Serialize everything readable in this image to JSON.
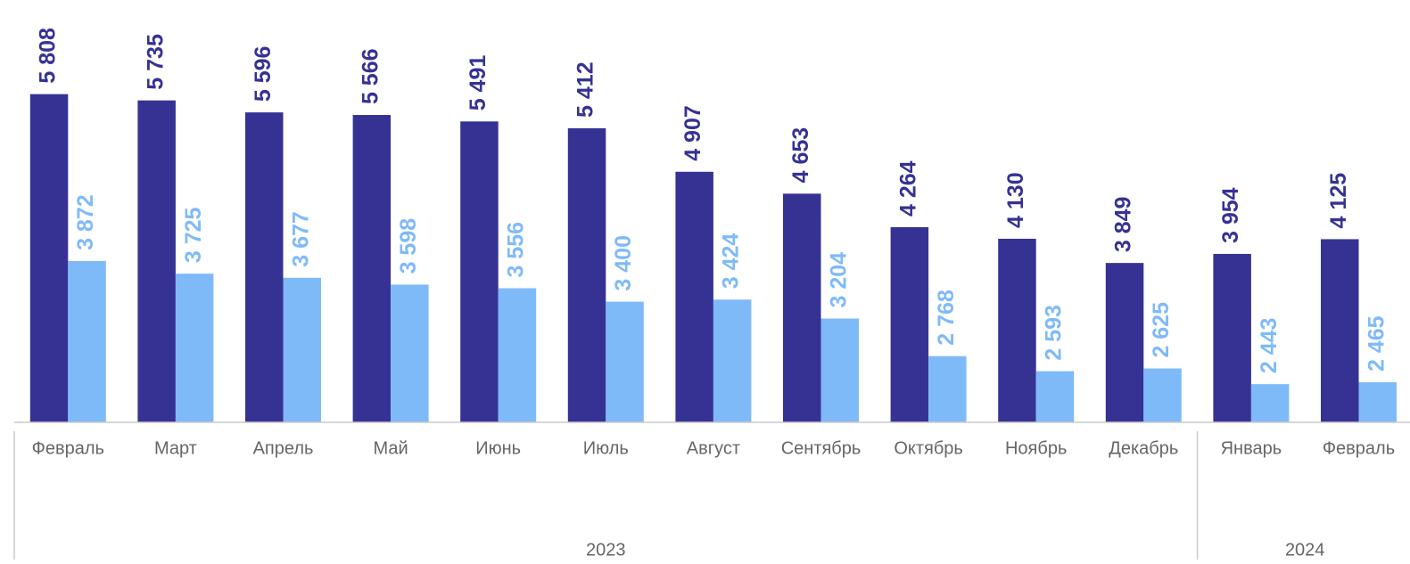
{
  "chart_data": {
    "type": "bar",
    "groups": [
      {
        "label": "2023",
        "categories": [
          "Февраль",
          "Март",
          "Апрель",
          "Май",
          "Июнь",
          "Июль",
          "Август",
          "Сентябрь",
          "Октябрь",
          "Ноябрь",
          "Декабрь"
        ]
      },
      {
        "label": "2024",
        "categories": [
          "Январь",
          "Февраль"
        ]
      }
    ],
    "series": [
      {
        "color": "#363294",
        "values": [
          5808,
          5735,
          5596,
          5566,
          5491,
          5412,
          4907,
          4653,
          4264,
          4130,
          3849,
          3954,
          4125
        ],
        "value_labels": [
          "5 808",
          "5 735",
          "5 596",
          "5 566",
          "5 491",
          "5 412",
          "4 907",
          "4 653",
          "4 264",
          "4 130",
          "3 849",
          "3 954",
          "4 125"
        ]
      },
      {
        "color": "#7fbaf8",
        "values": [
          3872,
          3725,
          3677,
          3598,
          3556,
          3400,
          3424,
          3204,
          2768,
          2593,
          2625,
          2443,
          2465
        ],
        "value_labels": [
          "3 872",
          "3 725",
          "3 677",
          "3 598",
          "3 556",
          "3 400",
          "3 424",
          "3 204",
          "2 768",
          "2 593",
          "2 625",
          "2 443",
          "2 465"
        ]
      }
    ],
    "ylim": [
      2000,
      6900
    ]
  }
}
